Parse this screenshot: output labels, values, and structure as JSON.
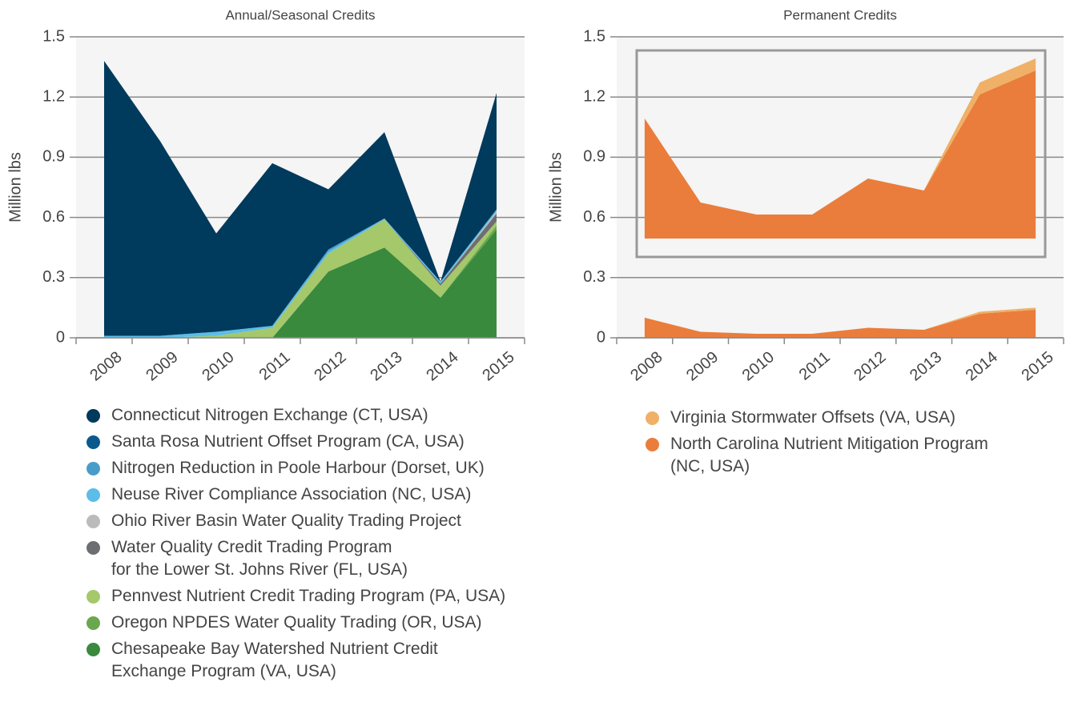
{
  "chart_data": [
    {
      "type": "area",
      "stacked": true,
      "title": "Annual/Seasonal Credits",
      "y_label": "Million lbs",
      "categories": [
        "2008",
        "2009",
        "2010",
        "2011",
        "2012",
        "2013",
        "2014",
        "2015"
      ],
      "ylim": [
        0,
        1.5
      ],
      "yticks": [
        0,
        0.3,
        0.6,
        0.9,
        1.2,
        1.5
      ],
      "grid": true,
      "series": [
        {
          "name": "Connecticut Nitrogen Exchange (CT, USA)",
          "color": "#003a5c",
          "values": [
            1.37,
            0.97,
            0.49,
            0.81,
            0.3,
            0.43,
            0,
            0.58
          ]
        },
        {
          "name": "Santa Rosa Nutrient Offset Program (CA, USA)",
          "color": "#0b5a8e",
          "values": [
            0,
            0,
            0,
            0,
            0,
            0,
            0,
            0
          ]
        },
        {
          "name": "Nitrogen Reduction in Poole Harbour (Dorset, UK)",
          "color": "#4a9cc8",
          "values": [
            0,
            0,
            0,
            0,
            0.01,
            0,
            0,
            0
          ]
        },
        {
          "name": "Neuse River Compliance Association (NC, USA)",
          "color": "#5bbde8",
          "values": [
            0.01,
            0.01,
            0.02,
            0.01,
            0.01,
            0.005,
            0.01,
            0.01
          ]
        },
        {
          "name": "Ohio River Basin Water Quality Trading Project",
          "color": "#bbbbbb",
          "values": [
            0,
            0,
            0,
            0,
            0,
            0,
            0,
            0.01
          ]
        },
        {
          "name": "Water Quality Credit Trading Program\nfor the Lower St. Johns River (FL, USA)",
          "color": "#6d6e71",
          "values": [
            0,
            0,
            0,
            0,
            0,
            0,
            0.01,
            0.04
          ]
        },
        {
          "name": "Pennvest Nutrient Credit Trading Program (PA, USA)",
          "color": "#a5c86a",
          "values": [
            0,
            0,
            0.01,
            0.05,
            0.09,
            0.14,
            0.06,
            0.02
          ]
        },
        {
          "name": "Oregon NPDES Water Quality Trading (OR, USA)",
          "color": "#6aa84f",
          "values": [
            0,
            0,
            0,
            0,
            0,
            0,
            0,
            0.02
          ]
        },
        {
          "name": "Chesapeake Bay Watershed Nutrient Credit\nExchange Program (VA, USA)",
          "color": "#3a8a3e",
          "values": [
            0,
            0,
            0,
            0,
            0.33,
            0.45,
            0.2,
            0.54
          ]
        }
      ]
    },
    {
      "type": "area",
      "stacked": true,
      "title": "Permanent Credits",
      "y_label": "Million lbs",
      "categories": [
        "2008",
        "2009",
        "2010",
        "2011",
        "2012",
        "2013",
        "2014",
        "2015"
      ],
      "ylim": [
        0,
        1.5
      ],
      "yticks": [
        0,
        0.3,
        0.6,
        0.9,
        1.2,
        1.5
      ],
      "grid": true,
      "series": [
        {
          "name": "Virginia Stormwater Offsets (VA, USA)",
          "color": "#f0b068",
          "values": [
            0,
            0,
            0,
            0,
            0,
            0,
            0.01,
            0.01
          ]
        },
        {
          "name": "North Carolina Nutrient Mitigation Program\n(NC, USA)",
          "color": "#ea7d3b",
          "values": [
            0.1,
            0.03,
            0.02,
            0.02,
            0.05,
            0.04,
            0.12,
            0.14
          ]
        }
      ]
    }
  ]
}
